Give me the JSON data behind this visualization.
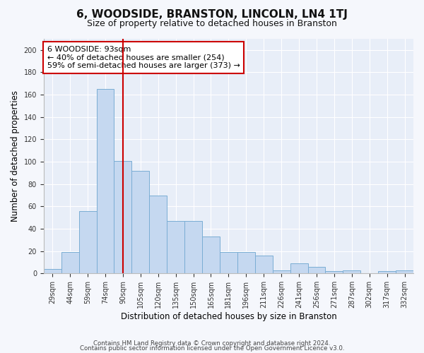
{
  "title": "6, WOODSIDE, BRANSTON, LINCOLN, LN4 1TJ",
  "subtitle": "Size of property relative to detached houses in Branston",
  "xlabel": "Distribution of detached houses by size in Branston",
  "ylabel": "Number of detached properties",
  "bar_color": "#c5d8f0",
  "bar_edge_color": "#7aadd4",
  "background_color": "#e8eef8",
  "grid_color": "#ffffff",
  "categories": [
    "29sqm",
    "44sqm",
    "59sqm",
    "74sqm",
    "90sqm",
    "105sqm",
    "120sqm",
    "135sqm",
    "150sqm",
    "165sqm",
    "181sqm",
    "196sqm",
    "211sqm",
    "226sqm",
    "241sqm",
    "256sqm",
    "271sqm",
    "287sqm",
    "302sqm",
    "317sqm",
    "332sqm"
  ],
  "values": [
    4,
    19,
    56,
    165,
    101,
    92,
    70,
    47,
    47,
    33,
    19,
    19,
    16,
    3,
    9,
    6,
    2,
    3,
    0,
    2,
    3
  ],
  "red_line_x": 4.0,
  "ylim": [
    0,
    210
  ],
  "yticks": [
    0,
    20,
    40,
    60,
    80,
    100,
    120,
    140,
    160,
    180,
    200
  ],
  "annotation_text": "6 WOODSIDE: 93sqm\n← 40% of detached houses are smaller (254)\n59% of semi-detached houses are larger (373) →",
  "annotation_box_color": "#ffffff",
  "annotation_box_edge_color": "#cc0000",
  "footer_line1": "Contains HM Land Registry data © Crown copyright and database right 2024.",
  "footer_line2": "Contains public sector information licensed under the Open Government Licence v3.0.",
  "red_line_color": "#cc0000",
  "fig_width": 6.0,
  "fig_height": 5.0,
  "fig_bg_color": "#f5f7fc"
}
